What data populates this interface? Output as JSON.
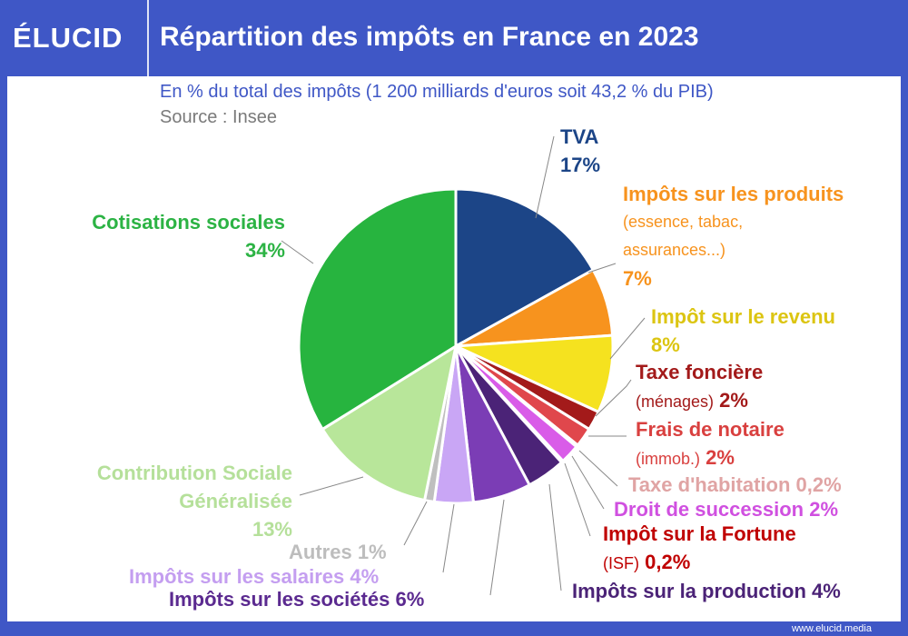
{
  "header": {
    "logo": "ÉLUCID",
    "title": "Répartition des impôts en France en 2023"
  },
  "footer": {
    "url": "www.elucid.media"
  },
  "chart_data": {
    "type": "pie",
    "title": "Répartition des impôts en France en 2023",
    "subtitle": "En % du total des impôts (1 200 milliards d'euros soit 43,2 % du PIB)",
    "source": "Source : Insee",
    "slices": [
      {
        "title": "TVA",
        "sub": "",
        "value": 17,
        "value_label": "17%",
        "color": "#1c4587",
        "label_color": "#1c4587"
      },
      {
        "title": "Impôts sur les produits",
        "sub": "(essence, tabac, assurances...)",
        "value": 7,
        "value_label": "7%",
        "color": "#f7931e",
        "label_color": "#f7931e"
      },
      {
        "title": "Impôt sur le revenu",
        "sub": "",
        "value": 8,
        "value_label": "8%",
        "color": "#f5e21f",
        "label_color": "#dcc512"
      },
      {
        "title": "Taxe foncière",
        "sub": "(ménages)",
        "value": 2,
        "value_label": "2%",
        "color": "#a31a1a",
        "label_color": "#a31a1a"
      },
      {
        "title": "Frais de notaire",
        "sub": "(immob.)",
        "value": 2,
        "value_label": "2%",
        "color": "#e0474c",
        "label_color": "#d9403f"
      },
      {
        "title": "Taxe d'habitation",
        "sub": "",
        "value": 0.2,
        "value_label": "0,2%",
        "color": "#e8a0a0",
        "label_color": "#e0a4a4"
      },
      {
        "title": "Droit de succession",
        "sub": "",
        "value": 2,
        "value_label": "2%",
        "color": "#d95ce8",
        "label_color": "#d050e0"
      },
      {
        "title": "Impôt sur la Fortune",
        "sub": "(ISF)",
        "value": 0.2,
        "value_label": "0,2%",
        "color": "#c00000",
        "label_color": "#c00000"
      },
      {
        "title": "Impôts sur la production",
        "sub": "",
        "value": 4,
        "value_label": "4%",
        "color": "#4b2377",
        "label_color": "#4b2377"
      },
      {
        "title": "Impôts sur les sociétés",
        "sub": "",
        "value": 6,
        "value_label": "6%",
        "color": "#7b3db5",
        "label_color": "#5b2a90"
      },
      {
        "title": "Impôts sur les salaires",
        "sub": "",
        "value": 4,
        "value_label": "4%",
        "color": "#c9a6f5",
        "label_color": "#c49ef0"
      },
      {
        "title": "Autres",
        "sub": "",
        "value": 1,
        "value_label": "1%",
        "color": "#bfbfbf",
        "label_color": "#bdbdbd"
      },
      {
        "title": "Contribution Sociale Généralisée",
        "sub": "",
        "value": 13,
        "value_label": "13%",
        "color": "#b8e69a",
        "label_color": "#b5e09a"
      },
      {
        "title": "Cotisations sociales",
        "sub": "",
        "value": 34,
        "value_label": "34%",
        "color": "#27b43f",
        "label_color": "#2cb344"
      }
    ]
  }
}
